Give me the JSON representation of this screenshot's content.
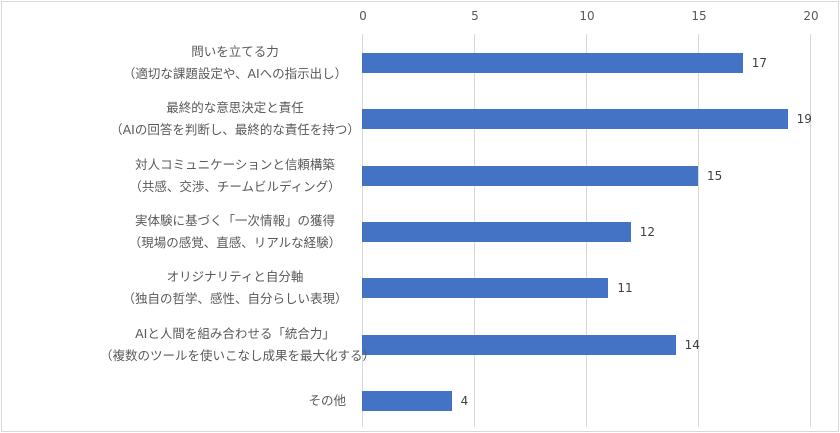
{
  "chart_data": {
    "type": "bar",
    "orientation": "horizontal",
    "title": "",
    "xlabel": "",
    "ylabel": "",
    "xlim": [
      0,
      20
    ],
    "x_ticks": [
      "0",
      "5",
      "10",
      "15",
      "20"
    ],
    "grid": true,
    "legend": null,
    "bar_color": "#4472c4",
    "categories": [
      {
        "line1": "問いを立てる力",
        "line2": "（適切な課題設定や、AIへの指示出し）"
      },
      {
        "line1": "最終的な意思決定と責任",
        "line2": "（AIの回答を判断し、最終的な責任を持つ）"
      },
      {
        "line1": "対人コミュニケーションと信頼構築",
        "line2": "（共感、交渉、チームビルディング）"
      },
      {
        "line1": "実体験に基づく「一次情報」の獲得",
        "line2": "（現場の感覚、直感、リアルな経験）"
      },
      {
        "line1": "オリジナリティと自分軸",
        "line2": "（独自の哲学、感性、自分らしい表現）"
      },
      {
        "line1": "AIと人間を組み合わせる「統合力」",
        "line2": "（複数のツールを使いこなし成果を最大化する）"
      },
      {
        "line1": "その他",
        "line2": ""
      }
    ],
    "values": [
      17,
      19,
      15,
      12,
      11,
      14,
      4
    ],
    "value_labels": [
      "17",
      "19",
      "15",
      "12",
      "11",
      "14",
      "4"
    ]
  }
}
